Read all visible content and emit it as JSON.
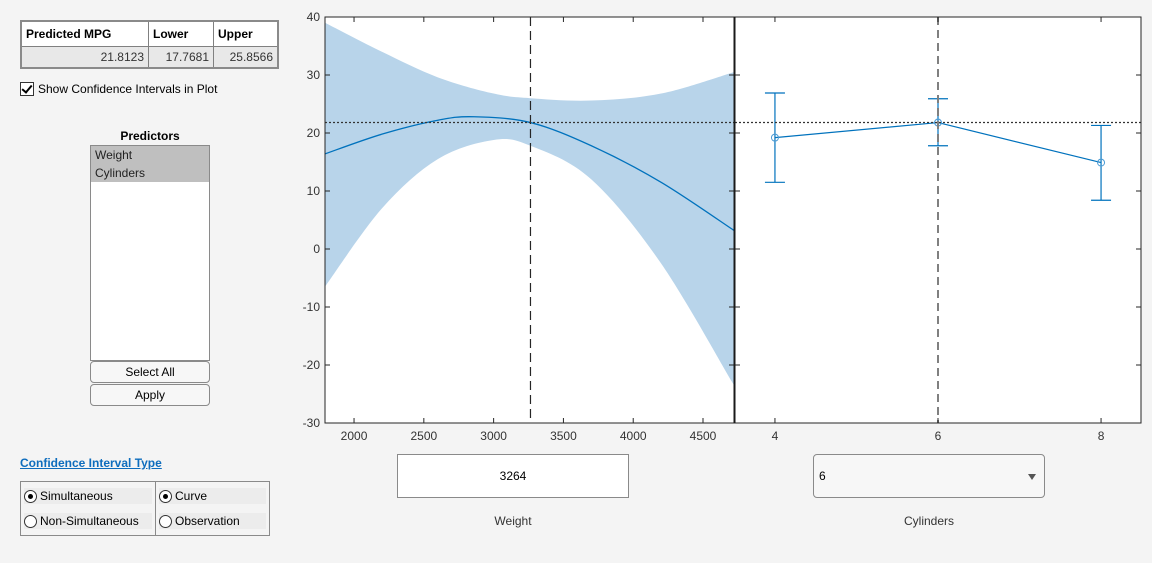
{
  "results_table": {
    "headers": [
      "Predicted MPG",
      "Lower",
      "Upper"
    ],
    "values": [
      "21.8123",
      "17.7681",
      "25.8566"
    ]
  },
  "show_ci": {
    "label": "Show Confidence Intervals in Plot",
    "checked": true
  },
  "predictors": {
    "title": "Predictors",
    "items": [
      "Weight",
      "Cylinders"
    ],
    "select_all_label": "Select All",
    "apply_label": "Apply"
  },
  "ci_type": {
    "title": "Confidence Interval Type",
    "group1": [
      {
        "label": "Simultaneous",
        "selected": true
      },
      {
        "label": "Non-Simultaneous",
        "selected": false
      }
    ],
    "group2": [
      {
        "label": "Curve",
        "selected": true
      },
      {
        "label": "Observation",
        "selected": false
      }
    ]
  },
  "controls": {
    "weight_value": "3264",
    "weight_label": "Weight",
    "cylinders_value": "6",
    "cylinders_label": "Cylinders"
  },
  "colors": {
    "line": "#0072bd",
    "band": "#b8d4ea",
    "axis": "#262626"
  },
  "chart_data": [
    {
      "type": "line",
      "title": "",
      "xlabel": "Weight",
      "ylabel": "",
      "xlim": [
        1792,
        4722
      ],
      "ylim": [
        -30,
        40
      ],
      "xticks": [
        "2000",
        "2500",
        "3000",
        "3500",
        "4000",
        "4500"
      ],
      "yticks": [
        "40",
        "30",
        "20",
        "10",
        "0",
        "-10",
        "-20",
        "-30"
      ],
      "grid": false,
      "current_x": 3264,
      "reference_y": 21.8123,
      "series": [
        {
          "name": "Predicted",
          "x": [
            1792,
            2200,
            2600,
            2860,
            3264,
            3700,
            4200,
            4722
          ],
          "values": [
            16.4,
            19.8,
            22.2,
            22.8,
            21.8,
            17.8,
            11.5,
            3.2
          ]
        },
        {
          "name": "Upper CI",
          "x": [
            1792,
            2200,
            2600,
            3000,
            3264,
            3700,
            4200,
            4722
          ],
          "values": [
            39.0,
            34.0,
            29.6,
            26.8,
            26.0,
            25.6,
            26.8,
            30.5
          ]
        },
        {
          "name": "Lower CI",
          "x": [
            1792,
            2200,
            2600,
            3000,
            3264,
            3700,
            4200,
            4722
          ],
          "values": [
            -6.5,
            7.0,
            15.5,
            18.8,
            17.8,
            12.0,
            -2.5,
            -23.5
          ]
        }
      ]
    },
    {
      "type": "line",
      "title": "",
      "xlabel": "Cylinders",
      "ylabel": "",
      "xlim": [
        3.51,
        8.49
      ],
      "ylim": [
        -30,
        40
      ],
      "xticks": [
        "4",
        "6",
        "8"
      ],
      "grid": false,
      "current_x": 6,
      "reference_y": 21.8123,
      "series": [
        {
          "name": "Predicted",
          "x": [
            4,
            6,
            8
          ],
          "values": [
            19.2,
            21.8,
            14.9
          ]
        },
        {
          "name": "Upper CI",
          "x": [
            4,
            6,
            8
          ],
          "values": [
            26.9,
            25.9,
            21.3
          ]
        },
        {
          "name": "Lower CI",
          "x": [
            4,
            6,
            8
          ],
          "values": [
            11.5,
            17.8,
            8.4
          ]
        }
      ]
    }
  ]
}
